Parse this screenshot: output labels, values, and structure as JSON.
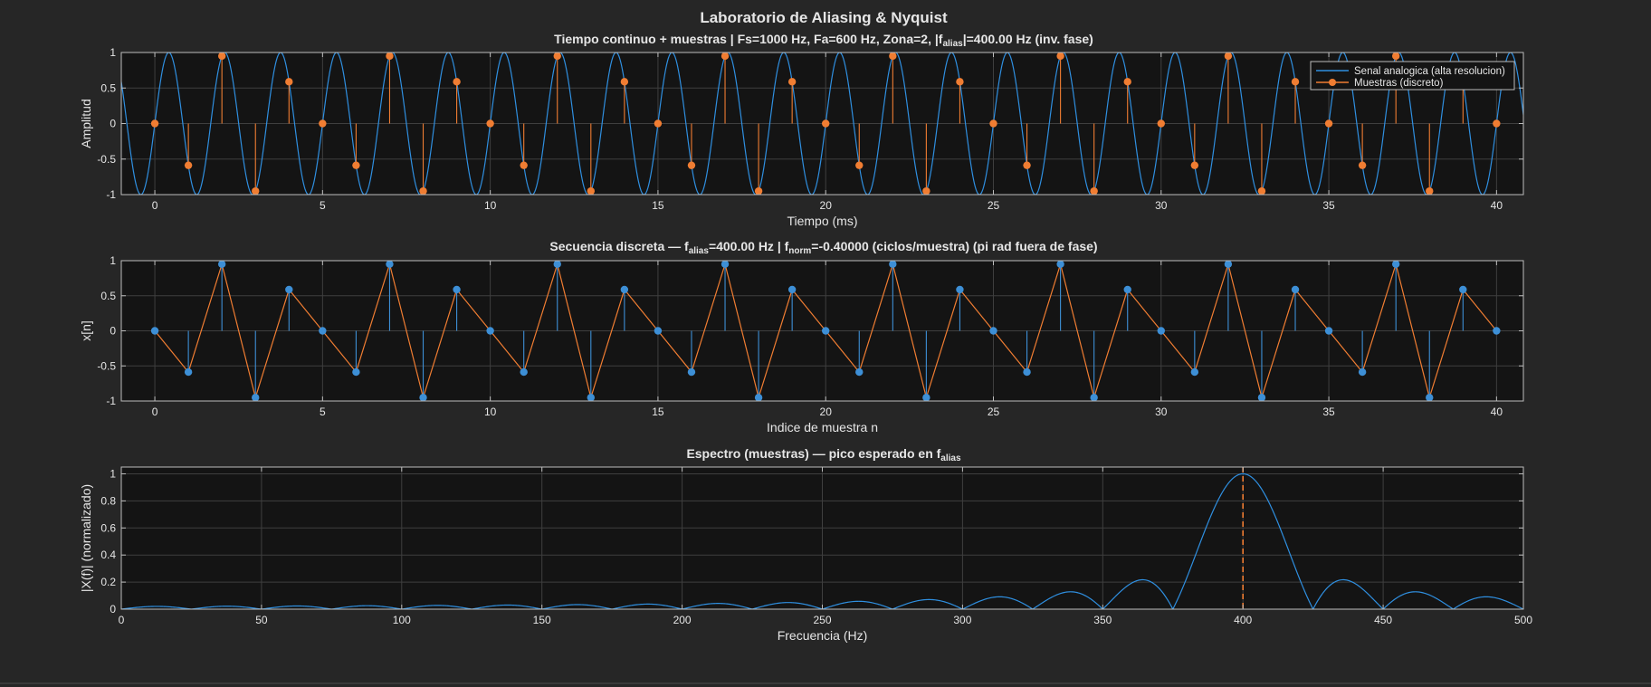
{
  "figure_title": "Laboratorio de Aliasing & Nyquist",
  "colors": {
    "background": "#262626",
    "axes_bg": "#141414",
    "grid": "#3f3f3f",
    "text": "#e6e6e6",
    "blue": "#2f8fe0",
    "orange": "#f07d32",
    "blue_marker": "#3d8fd6"
  },
  "chart_data": [
    {
      "type": "line",
      "id": "time",
      "title": "Tiempo  continuo  +  muestras     |     Fs=1000  Hz,  Fa=600  Hz,  Zona=2,  |f_alias|=400.00  Hz  (inv.  fase)",
      "title_parts": [
        "Tiempo  continuo  +  muestras     |     Fs=1000  Hz,  Fa=600  Hz,  Zona=2,  |f",
        "alias",
        "|=400.00  Hz  (inv.  fase)"
      ],
      "xlabel": "Tiempo (ms)",
      "ylabel": "Amplitud",
      "xlim": [
        -1,
        40.8
      ],
      "ylim": [
        -1,
        1
      ],
      "xticks": [
        0,
        5,
        10,
        15,
        20,
        25,
        30,
        35,
        40
      ],
      "yticks": [
        -1,
        -0.5,
        0,
        0.5,
        1
      ],
      "ytick_labels": [
        "-1",
        "-0.5",
        "0",
        "0.5",
        "1"
      ],
      "grid": true,
      "legend_position": "top-right",
      "series": [
        {
          "name": "Senal analogica (alta resolucion)",
          "kind": "line",
          "color": "#2f8fe0",
          "function": "sin(2*pi*600*t)",
          "t_unit": "ms",
          "x_range": [
            -1,
            40.8
          ]
        },
        {
          "name": "Muestras (discreto)",
          "kind": "stem",
          "color": "#f07d32",
          "x": [
            0,
            1,
            2,
            3,
            4,
            5,
            6,
            7,
            8,
            9,
            10,
            11,
            12,
            13,
            14,
            15,
            16,
            17,
            18,
            19,
            20,
            21,
            22,
            23,
            24,
            25,
            26,
            27,
            28,
            29,
            30,
            31,
            32,
            33,
            34,
            35,
            36,
            37,
            38,
            39,
            40
          ],
          "y": [
            0,
            -0.588,
            0.951,
            -0.951,
            0.588,
            0,
            -0.588,
            0.951,
            -0.951,
            0.588,
            0,
            -0.588,
            0.951,
            -0.951,
            0.588,
            0,
            -0.588,
            0.951,
            -0.951,
            0.588,
            0,
            -0.588,
            0.951,
            -0.951,
            0.588,
            0,
            -0.588,
            0.951,
            -0.951,
            0.588,
            0,
            -0.588,
            0.951,
            -0.951,
            0.588,
            0,
            -0.588,
            0.951,
            -0.951,
            0.588,
            0
          ]
        }
      ]
    },
    {
      "type": "line",
      "id": "discrete",
      "title": "Secuencia  discreta  —  f_alias=400.00  Hz   |   f_norm=-0.40000  (ciclos/muestra)   (pi  rad  fuera  de  fase)",
      "title_parts": [
        "Secuencia  discreta  —  f",
        "alias",
        "=400.00  Hz   |   f",
        "norm",
        "=-0.40000  (ciclos/muestra)   (pi  rad  fuera  de  fase)"
      ],
      "xlabel": "Indice de muestra n",
      "ylabel": "x[n]",
      "xlim": [
        -1,
        40.8
      ],
      "ylim": [
        -1,
        1
      ],
      "xticks": [
        0,
        5,
        10,
        15,
        20,
        25,
        30,
        35,
        40
      ],
      "yticks": [
        -1,
        -0.5,
        0,
        0.5,
        1
      ],
      "ytick_labels": [
        "-1",
        "-0.5",
        "0",
        "0.5",
        "1"
      ],
      "grid": true,
      "series": [
        {
          "kind": "stem",
          "color": "#3d8fd6",
          "x": [
            0,
            1,
            2,
            3,
            4,
            5,
            6,
            7,
            8,
            9,
            10,
            11,
            12,
            13,
            14,
            15,
            16,
            17,
            18,
            19,
            20,
            21,
            22,
            23,
            24,
            25,
            26,
            27,
            28,
            29,
            30,
            31,
            32,
            33,
            34,
            35,
            36,
            37,
            38,
            39,
            40
          ],
          "y": [
            0,
            -0.588,
            0.951,
            -0.951,
            0.588,
            0,
            -0.588,
            0.951,
            -0.951,
            0.588,
            0,
            -0.588,
            0.951,
            -0.951,
            0.588,
            0,
            -0.588,
            0.951,
            -0.951,
            0.588,
            0,
            -0.588,
            0.951,
            -0.951,
            0.588,
            0,
            -0.588,
            0.951,
            -0.951,
            0.588,
            0,
            -0.588,
            0.951,
            -0.951,
            0.588,
            0,
            -0.588,
            0.951,
            -0.951,
            0.588,
            0
          ]
        },
        {
          "kind": "line",
          "color": "#f07d32",
          "same_as_previous": true
        }
      ]
    },
    {
      "type": "line",
      "id": "spectrum",
      "title": "Espectro  (muestras)  —  pico  esperado  en  f_alias",
      "title_parts": [
        "Espectro  (muestras)  —  pico  esperado  en  f",
        "alias",
        ""
      ],
      "xlabel": "Frecuencia (Hz)",
      "ylabel": "|X(f)| (normalizado)",
      "xlim": [
        0,
        500
      ],
      "ylim": [
        0,
        1.05
      ],
      "xticks": [
        0,
        50,
        100,
        150,
        200,
        250,
        300,
        350,
        400,
        450,
        500
      ],
      "yticks": [
        0,
        0.2,
        0.4,
        0.6,
        0.8,
        1
      ],
      "ytick_labels": [
        "0",
        "0.2",
        "0.4",
        "0.6",
        "0.8",
        "1"
      ],
      "grid": true,
      "series": [
        {
          "kind": "line",
          "color": "#2f8fe0",
          "function": "|sinc((f-400)/25)| normalized, N=41 samples"
        },
        {
          "kind": "vline",
          "color": "#f07d32",
          "style": "dashed",
          "x": 400
        }
      ]
    }
  ]
}
